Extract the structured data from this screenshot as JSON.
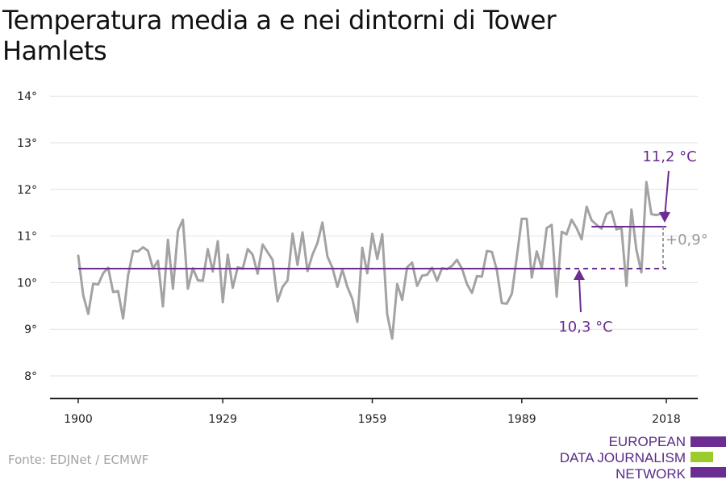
{
  "title": "Temperatura media a e nei dintorni di Tower Hamlets",
  "source": "Fonte: EDJNet / ECMWF",
  "logo": {
    "lines": [
      "EUROPEAN",
      "DATA JOURNALISM",
      "NETWORK"
    ],
    "colors": {
      "purple": "#6b2d91",
      "green": "#9ccc2c"
    }
  },
  "colors": {
    "series": "#a3a3a3",
    "reference": "#6b2d91",
    "grid": "#e2e2e2",
    "axis": "#222222",
    "difference": "#9a9a9a"
  },
  "chart_data": {
    "type": "line",
    "title": "Temperatura media a e nei dintorni di Tower Hamlets",
    "ylim": [
      7.5,
      14.2
    ],
    "xlim": [
      1900,
      2018
    ],
    "yticks": [
      8,
      9,
      10,
      11,
      12,
      13,
      14
    ],
    "ytick_labels": [
      "8°",
      "9°",
      "10°",
      "11°",
      "12°",
      "13°",
      "14°"
    ],
    "xticks": [
      1900,
      1929,
      1959,
      1989,
      2018
    ],
    "xtick_labels": [
      "1900",
      "1929",
      "1959",
      "1989",
      "2018"
    ],
    "grid": true,
    "series": [
      {
        "x": [
          1900,
          1901,
          1902,
          1903,
          1904,
          1905,
          1906,
          1907,
          1908,
          1909,
          1910,
          1911,
          1912,
          1913,
          1914,
          1915,
          1916,
          1917,
          1918,
          1919,
          1920,
          1921,
          1922,
          1923,
          1924,
          1925,
          1926,
          1927,
          1928,
          1929,
          1930,
          1931,
          1932,
          1933,
          1934,
          1935,
          1936,
          1937,
          1938,
          1939,
          1940,
          1941,
          1942,
          1943,
          1944,
          1945,
          1946,
          1947,
          1948,
          1949,
          1950,
          1951,
          1952,
          1953,
          1954,
          1955,
          1956,
          1957,
          1958,
          1959,
          1960,
          1961,
          1962,
          1963,
          1964,
          1965,
          1966,
          1967,
          1968,
          1969,
          1970,
          1971,
          1972,
          1973,
          1974,
          1975,
          1976,
          1977,
          1978,
          1979,
          1980,
          1981,
          1982,
          1983,
          1984,
          1985,
          1986,
          1987,
          1988,
          1989,
          1990,
          1991,
          1992,
          1993,
          1994,
          1995,
          1996,
          1997,
          1998,
          1999,
          2000,
          2001,
          2002,
          2003,
          2004,
          2005,
          2006,
          2007,
          2008,
          2009,
          2010,
          2011,
          2012,
          2013,
          2014,
          2015,
          2016,
          2017,
          2018
        ],
        "values": [
          10.58,
          9.73,
          9.33,
          9.98,
          9.96,
          10.2,
          10.32,
          9.8,
          9.82,
          9.23,
          10.16,
          10.68,
          10.67,
          10.76,
          10.68,
          10.3,
          10.47,
          9.49,
          10.92,
          9.87,
          11.11,
          11.35,
          9.87,
          10.31,
          10.05,
          10.04,
          10.72,
          10.24,
          10.89,
          9.58,
          10.6,
          9.89,
          10.33,
          10.3,
          10.72,
          10.6,
          10.19,
          10.82,
          10.65,
          10.49,
          9.6,
          9.91,
          10.05,
          11.05,
          10.38,
          11.08,
          10.25,
          10.6,
          10.85,
          11.29,
          10.56,
          10.32,
          9.91,
          10.28,
          9.91,
          9.65,
          9.16,
          10.75,
          10.2,
          11.05,
          10.51,
          11.04,
          9.32,
          8.8,
          9.97,
          9.63,
          10.33,
          10.43,
          9.93,
          10.15,
          10.17,
          10.32,
          10.04,
          10.31,
          10.29,
          10.36,
          10.49,
          10.3,
          9.97,
          9.78,
          10.14,
          10.13,
          10.68,
          10.66,
          10.27,
          9.56,
          9.55,
          9.76,
          10.55,
          11.37,
          11.37,
          10.11,
          10.67,
          10.31,
          11.17,
          11.24,
          9.7,
          11.09,
          11.04,
          11.35,
          11.17,
          10.93,
          11.63,
          11.34,
          11.24,
          11.16,
          11.47,
          11.53,
          11.14,
          11.18,
          9.93,
          11.57,
          10.71,
          10.22,
          12.16,
          11.47,
          11.45,
          11.48,
          11.52
        ]
      }
    ],
    "reference_lines": [
      {
        "label": "10,3 °C",
        "value": 10.3,
        "solid_from": 1900,
        "solid_to": 1996,
        "dashed_to": 2018
      },
      {
        "label": "11,2 °C",
        "value": 11.2,
        "from": 2003,
        "to": 2018
      }
    ],
    "difference_label": "+0,9°"
  }
}
